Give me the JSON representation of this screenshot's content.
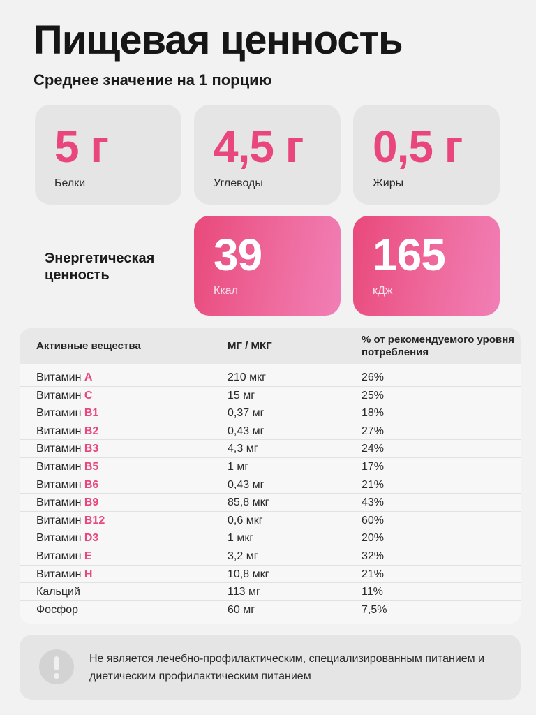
{
  "title": "Пищевая ценность",
  "subtitle": "Среднее значение на 1 порцию",
  "colors": {
    "accent": "#e8467c",
    "gradient_end": "#f07fb6"
  },
  "macros": [
    {
      "value": "5 г",
      "label": "Белки"
    },
    {
      "value": "4,5 г",
      "label": "Углеводы"
    },
    {
      "value": "0,5 г",
      "label": "Жиры"
    }
  ],
  "energy": {
    "label": "Энергетическая ценность",
    "kcal": {
      "value": "39",
      "label": "Ккал"
    },
    "kj": {
      "value": "165",
      "label": "кДж"
    }
  },
  "table": {
    "headers": {
      "name": "Активные вещества",
      "amount": "МГ / МКГ",
      "percent": "% от рекомендуемого уровня потребления"
    },
    "rows": [
      {
        "prefix": "Витамин ",
        "accent": "A",
        "amount": "210 мкг",
        "percent": "26%"
      },
      {
        "prefix": "Витамин ",
        "accent": "C",
        "amount": "15 мг",
        "percent": "25%"
      },
      {
        "prefix": "Витамин ",
        "accent": "B1",
        "amount": "0,37 мг",
        "percent": "18%"
      },
      {
        "prefix": "Витамин ",
        "accent": "B2",
        "amount": "0,43 мг",
        "percent": "27%"
      },
      {
        "prefix": "Витамин ",
        "accent": "B3",
        "amount": "4,3 мг",
        "percent": "24%"
      },
      {
        "prefix": "Витамин ",
        "accent": "B5",
        "amount": "1 мг",
        "percent": "17%"
      },
      {
        "prefix": "Витамин ",
        "accent": "B6",
        "amount": "0,43 мг",
        "percent": "21%"
      },
      {
        "prefix": "Витамин ",
        "accent": "B9",
        "amount": "85,8 мкг",
        "percent": "43%"
      },
      {
        "prefix": "Витамин ",
        "accent": "B12",
        "amount": "0,6 мкг",
        "percent": "60%"
      },
      {
        "prefix": "Витамин ",
        "accent": "D3",
        "amount": "1 мкг",
        "percent": "20%"
      },
      {
        "prefix": "Витамин ",
        "accent": "E",
        "amount": "3,2 мг",
        "percent": "32%"
      },
      {
        "prefix": "Витамин ",
        "accent": "H",
        "amount": "10,8 мкг",
        "percent": "21%"
      },
      {
        "prefix": "Кальций",
        "accent": "",
        "amount": "113 мг",
        "percent": "11%"
      },
      {
        "prefix": "Фосфор",
        "accent": "",
        "amount": "60 мг",
        "percent": "7,5%"
      }
    ]
  },
  "notice": {
    "icon": "exclamation-icon",
    "text": "Не является лечебно-профилактическим, специализированным питанием и диетическим профилактическим питанием"
  }
}
